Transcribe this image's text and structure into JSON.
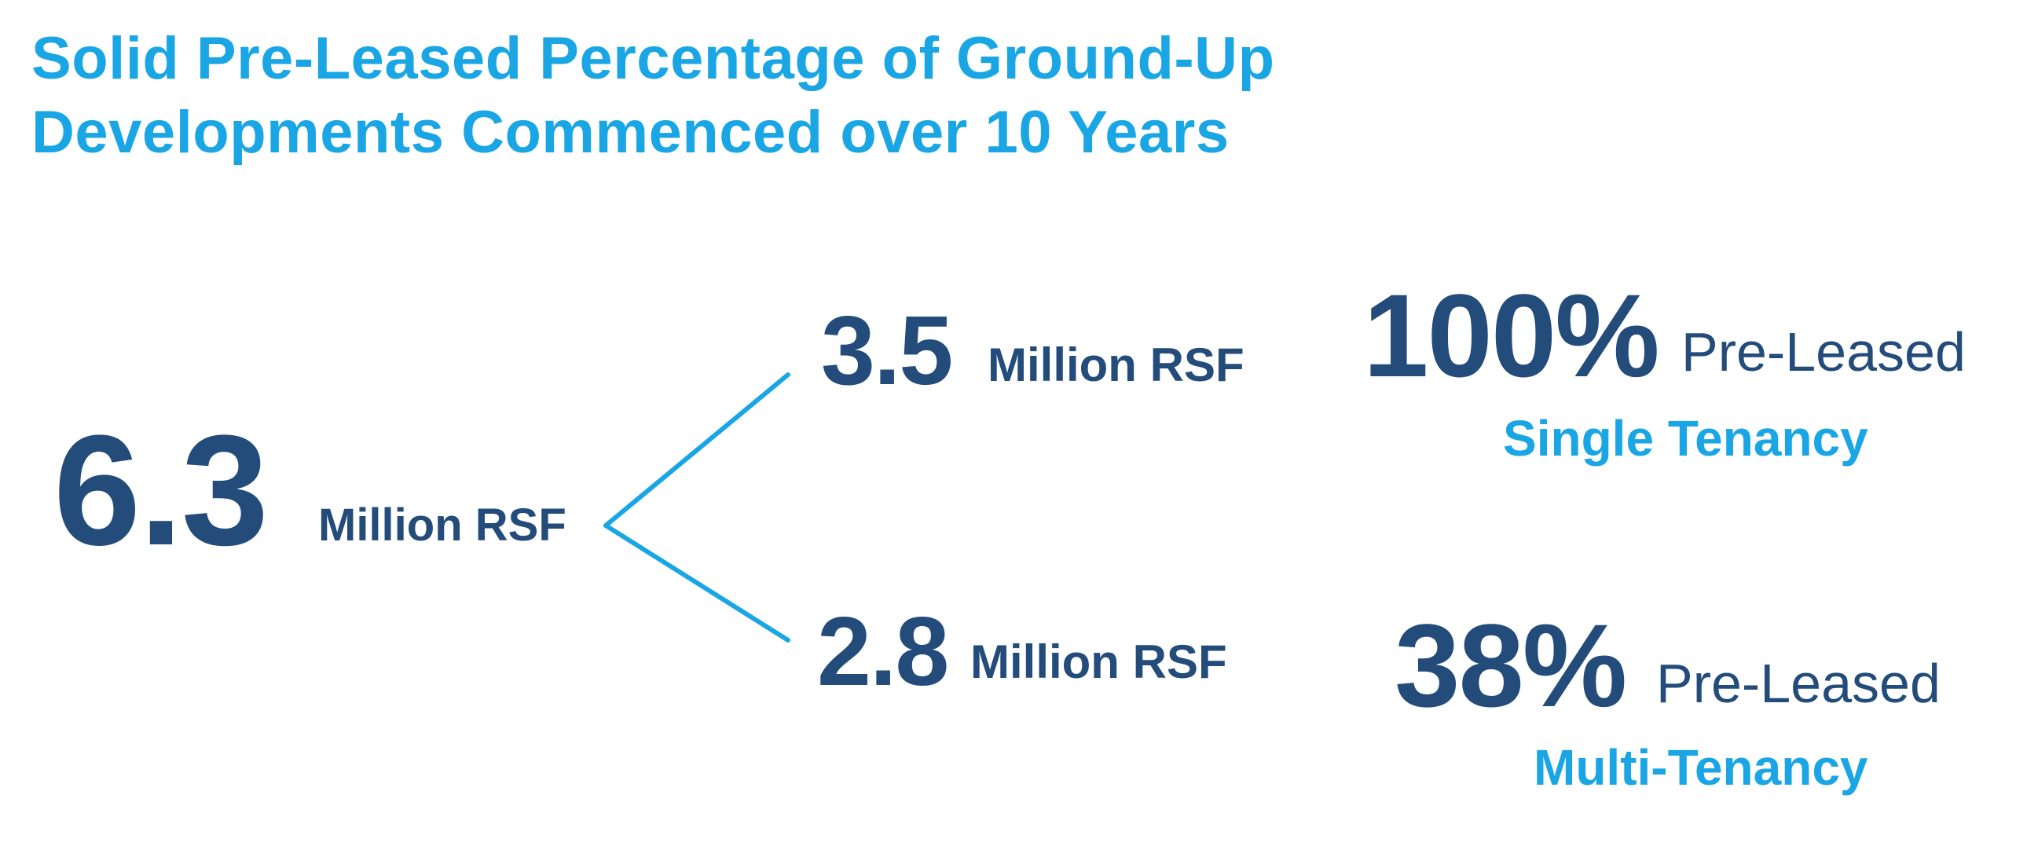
{
  "title": {
    "line1": "Solid Pre-Leased Percentage of Ground-Up",
    "line2": "Developments Commenced over 10 Years"
  },
  "total": {
    "value": "6.3",
    "unit": "Million RSF"
  },
  "single": {
    "value": "3.5",
    "unit": "Million RSF",
    "pct": "100%",
    "pct_label": "Pre-Leased",
    "category": "Single Tenancy"
  },
  "multi": {
    "value": "2.8",
    "unit": "Million RSF",
    "pct": "38%",
    "pct_label": "Pre-Leased",
    "category": "Multi-Tenancy"
  },
  "colors": {
    "accent": "#1aa6e4",
    "navy": "#234c7b"
  }
}
